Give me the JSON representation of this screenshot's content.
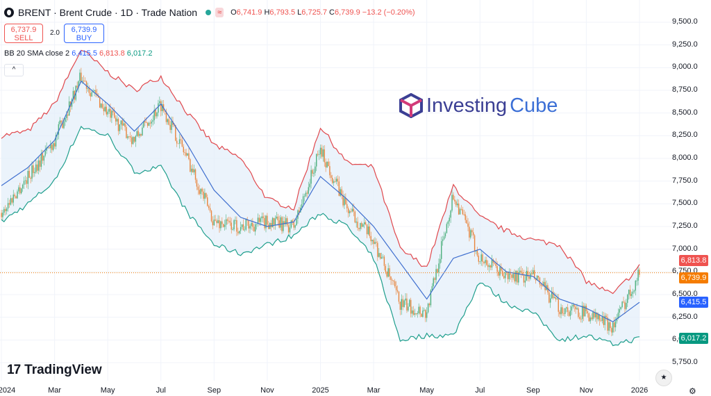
{
  "header": {
    "title": "BRENT · Brent Crude · 1D · Trade Nation",
    "badge": "≈",
    "ohlc": {
      "o_label": "O",
      "o": "6,741.9",
      "h_label": "H",
      "h": "6,793.5",
      "l_label": "L",
      "l": "6,725.7",
      "c_label": "C",
      "c": "6,739.9",
      "chg": "−13.2 (−0.20%)"
    }
  },
  "trade": {
    "sell_price": "6,737.9",
    "sell_label": "SELL",
    "spread": "2.0",
    "buy_price": "6,739.9",
    "buy_label": "BUY"
  },
  "indicator": {
    "name": "BB 20 SMA close 2",
    "basis": "6,415.5",
    "upper": "6,813.8",
    "lower": "6,017.2"
  },
  "collapse_icon": "^",
  "y_axis_labels": [
    "9,500.0",
    "9,250.0",
    "9,000.0",
    "8,750.0",
    "8,500.0",
    "8,250.0",
    "8,000.0",
    "7,750.0",
    "7,500.0",
    "7,250.0",
    "7,000.0",
    "6,750.0",
    "6,500.0",
    "6,250.0",
    "6,000.0",
    "5,750.0"
  ],
  "x_axis_labels": [
    "2024",
    "Mar",
    "May",
    "Jul",
    "Sep",
    "Nov",
    "2025",
    "Mar",
    "May",
    "Jul",
    "Sep",
    "Nov",
    "2026"
  ],
  "price_tags": {
    "upper": "6,813.8",
    "last": "6,739.9",
    "basis": "6,415.5",
    "lower": "6,017.2"
  },
  "watermarks": {
    "tradingview_mark": "17",
    "tradingview": "TradingView",
    "investing_a": "Investing",
    "investing_b": "Cube"
  },
  "colors": {
    "up": "#26a69a",
    "down": "#ef5350",
    "candle_up": "#4caf7d",
    "candle_down": "#e8833a",
    "bb_upper": "#e0474c",
    "bb_basis": "#3f6fcf",
    "bb_lower": "#1e9e8c",
    "bb_fill": "#e3eef9",
    "last_tag": "#f57c00",
    "upper_tag": "#ef5350",
    "basis_tag": "#2962ff",
    "lower_tag": "#089981"
  },
  "chart_data": {
    "type": "candlestick",
    "instrument": "BRENT · Brent Crude",
    "timeframe": "1D",
    "ylim": [
      5650,
      9650
    ],
    "x_range": [
      "2024-01",
      "2026-01"
    ],
    "indicator": "BB 20 SMA close 2",
    "series": [
      {
        "name": "upper",
        "x": [
          "2024-01",
          "2024-02",
          "2024-03",
          "2024-04",
          "2024-05",
          "2024-06",
          "2024-07",
          "2024-08",
          "2024-09",
          "2024-10",
          "2024-11",
          "2024-12",
          "2025-01",
          "2025-02",
          "2025-03",
          "2025-04",
          "2025-05",
          "2025-06",
          "2025-07",
          "2025-08",
          "2025-09",
          "2025-10",
          "2025-11",
          "2025-12",
          "2026-01"
        ],
        "values": [
          8250,
          8300,
          8600,
          9200,
          8950,
          8750,
          8900,
          8500,
          8150,
          8000,
          7550,
          7450,
          8350,
          7950,
          7900,
          7000,
          6800,
          7700,
          7350,
          7200,
          7100,
          7050,
          6650,
          6500,
          6810
        ]
      },
      {
        "name": "basis",
        "x": [
          "2024-01",
          "2024-02",
          "2024-03",
          "2024-04",
          "2024-05",
          "2024-06",
          "2024-07",
          "2024-08",
          "2024-09",
          "2024-10",
          "2024-11",
          "2024-12",
          "2025-01",
          "2025-02",
          "2025-03",
          "2025-04",
          "2025-05",
          "2025-06",
          "2025-07",
          "2025-08",
          "2025-09",
          "2025-10",
          "2025-11",
          "2025-12",
          "2026-01"
        ],
        "values": [
          7700,
          7900,
          8200,
          8850,
          8600,
          8300,
          8600,
          8150,
          7650,
          7350,
          7250,
          7300,
          7800,
          7550,
          7250,
          6850,
          6450,
          6900,
          7000,
          6750,
          6700,
          6450,
          6350,
          6200,
          6415
        ]
      },
      {
        "name": "lower",
        "x": [
          "2024-01",
          "2024-02",
          "2024-03",
          "2024-04",
          "2024-05",
          "2024-06",
          "2024-07",
          "2024-08",
          "2024-09",
          "2024-10",
          "2024-11",
          "2024-12",
          "2025-01",
          "2025-02",
          "2025-03",
          "2025-04",
          "2025-05",
          "2025-06",
          "2025-07",
          "2025-08",
          "2025-09",
          "2025-10",
          "2025-11",
          "2025-12",
          "2026-01"
        ],
        "values": [
          7300,
          7500,
          7750,
          8350,
          8250,
          7850,
          7900,
          7400,
          7050,
          6950,
          7050,
          7150,
          7400,
          7250,
          6900,
          6000,
          6050,
          6050,
          6650,
          6400,
          6300,
          6000,
          6050,
          5950,
          6017
        ]
      }
    ],
    "close": [
      7400,
      7800,
      8200,
      8900,
      8500,
      8200,
      8600,
      8000,
      7300,
      7250,
      7300,
      7250,
      8100,
      7450,
      7100,
      6400,
      6300,
      7600,
      6900,
      6700,
      6700,
      6350,
      6300,
      6150,
      6740
    ],
    "last": {
      "close": 6739.9,
      "basis": 6415.5,
      "upper": 6813.8,
      "lower": 6017.2
    }
  }
}
